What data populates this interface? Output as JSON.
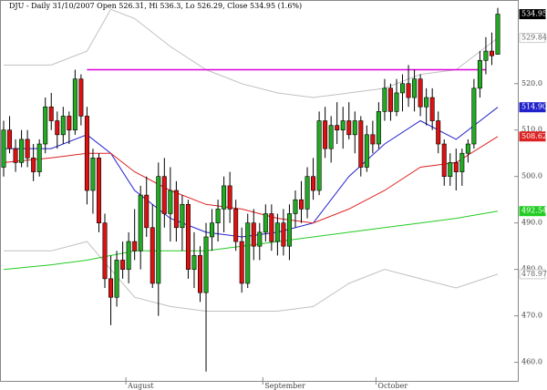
{
  "chart_data": {
    "type": "candlestick",
    "title": "DJU - Daily 31/10/2007 Open 526.31, Hi 536.3, Lo 526.29, Close 534.95 (1.6%)",
    "categories": [
      null,
      null,
      null,
      null,
      null,
      null,
      null,
      null,
      null,
      null,
      null,
      null,
      null,
      null,
      null,
      null,
      null,
      null,
      null,
      null,
      null,
      "August",
      null,
      null,
      null,
      null,
      null,
      null,
      null,
      null,
      null,
      null,
      null,
      null,
      null,
      null,
      null,
      null,
      null,
      null,
      null,
      null,
      null,
      null,
      "September",
      null,
      null,
      null,
      null,
      null,
      null,
      null,
      null,
      null,
      null,
      null,
      null,
      null,
      null,
      null,
      null,
      null,
      null,
      "October",
      null,
      null,
      null,
      null,
      null,
      null,
      null,
      null,
      null,
      null,
      null,
      null,
      null,
      null,
      null,
      null,
      null,
      null,
      null,
      null
    ],
    "open": [
      502,
      510,
      506,
      503,
      508,
      504,
      501,
      507,
      515,
      512,
      509,
      513,
      510,
      521,
      513,
      497,
      504,
      490,
      478,
      474,
      482,
      480,
      486,
      484,
      496,
      489,
      477,
      500,
      492,
      497,
      489,
      494,
      480,
      483,
      475,
      487,
      490,
      493,
      498,
      493,
      486,
      477,
      490,
      485,
      488,
      492,
      486,
      490,
      485,
      492,
      495,
      493,
      500,
      497,
      512,
      506,
      511,
      510,
      512,
      509,
      512,
      502,
      509,
      507,
      514,
      519,
      514,
      518,
      520,
      517,
      521,
      515,
      517,
      512,
      507,
      500,
      503,
      501,
      505,
      507,
      519,
      525,
      527,
      526.31
    ],
    "high": [
      512,
      513,
      508,
      510,
      510,
      507,
      508,
      517,
      518,
      514,
      515,
      514,
      523,
      522,
      515,
      506,
      505,
      492,
      483,
      484,
      486,
      488,
      493,
      498,
      500,
      494,
      503,
      504,
      502,
      499,
      496,
      495,
      488,
      485,
      490,
      493,
      495,
      500,
      501,
      495,
      489,
      492,
      493,
      490,
      494,
      494,
      492,
      493,
      494,
      497,
      499,
      502,
      504,
      514,
      515,
      513,
      516,
      515,
      516,
      514,
      513,
      511,
      512,
      516,
      521,
      520,
      521,
      522,
      524,
      523,
      522,
      519,
      519,
      514,
      508,
      505,
      506,
      506,
      508,
      521,
      527,
      530,
      531,
      536.3
    ],
    "low": [
      500,
      505,
      501,
      502,
      502,
      499,
      500,
      505,
      510,
      506,
      507,
      507,
      509,
      511,
      494,
      492,
      488,
      476,
      468,
      472,
      478,
      477,
      482,
      480,
      487,
      476,
      470,
      489,
      486,
      486,
      484,
      478,
      476,
      473,
      458,
      484,
      486,
      488,
      490,
      484,
      475,
      476,
      482,
      482,
      486,
      484,
      483,
      483,
      482,
      489,
      490,
      491,
      495,
      496,
      504,
      503,
      507,
      506,
      508,
      505,
      500,
      501,
      505,
      506,
      512,
      512,
      513,
      514,
      515,
      514,
      513,
      511,
      510,
      505,
      498,
      498,
      497,
      498,
      503,
      506,
      517,
      522,
      524,
      526.29
    ],
    "close": [
      510,
      506,
      503,
      508,
      504,
      501,
      507,
      515,
      512,
      509,
      513,
      510,
      521,
      513,
      497,
      504,
      490,
      478,
      474,
      482,
      480,
      486,
      484,
      496,
      489,
      477,
      500,
      492,
      497,
      489,
      494,
      480,
      483,
      475,
      487,
      490,
      493,
      498,
      493,
      486,
      477,
      490,
      485,
      488,
      492,
      486,
      490,
      485,
      492,
      495,
      493,
      500,
      497,
      512,
      506,
      511,
      510,
      512,
      509,
      512,
      502,
      509,
      507,
      514,
      519,
      514,
      518,
      520,
      517,
      521,
      515,
      517,
      512,
      507,
      500,
      503,
      501,
      505,
      507,
      519,
      525,
      527,
      526,
      534.95
    ],
    "up_color": "#22aa22",
    "down_color": "#dd1111",
    "close_tag_color": "#000000",
    "lines": [
      {
        "color": "#c0c0c0",
        "tag": true,
        "tag_fill": "#ffffff",
        "tag_text": "#666666",
        "x": [
          0,
          8,
          14,
          18,
          22,
          28,
          34,
          40,
          46,
          52,
          58,
          64,
          70,
          76,
          83
        ],
        "values": [
          524,
          524,
          527,
          536,
          534,
          528,
          523,
          520,
          518,
          517,
          518,
          519,
          522,
          523,
          529.847
        ]
      },
      {
        "color": "#c0c0c0",
        "tag": true,
        "tag_fill": "#ffffff",
        "tag_text": "#666666",
        "x": [
          0,
          8,
          14,
          18,
          22,
          28,
          34,
          40,
          46,
          52,
          58,
          64,
          70,
          76,
          83
        ],
        "values": [
          484,
          484,
          486,
          480,
          474,
          472,
          471,
          471,
          471,
          472,
          477,
          480,
          478,
          476,
          478.97
        ],
        "end_label": "478.970"
      },
      {
        "color": "#2222cc",
        "tag": true,
        "tag_fill": "#2222cc",
        "tag_text": "#ffffff",
        "x": [
          0,
          8,
          14,
          18,
          22,
          28,
          34,
          40,
          46,
          52,
          58,
          64,
          70,
          76,
          83
        ],
        "values": [
          506,
          506,
          509,
          505,
          497,
          491,
          488,
          487,
          488,
          490,
          500,
          507,
          512,
          508,
          514.907
        ]
      },
      {
        "color": "#dd2222",
        "tag": true,
        "tag_fill": "#dd2222",
        "tag_text": "#ffffff",
        "x": [
          0,
          8,
          14,
          18,
          22,
          28,
          34,
          40,
          46,
          52,
          58,
          64,
          70,
          76,
          83
        ],
        "values": [
          503,
          504,
          505,
          505,
          501,
          497,
          494,
          493,
          491,
          490,
          493,
          497,
          502,
          503,
          508.623
        ]
      },
      {
        "color": "#22cc22",
        "tag": true,
        "tag_fill": "#22cc22",
        "tag_text": "#ffffff",
        "x": [
          0,
          8,
          14,
          18,
          22,
          28,
          34,
          40,
          46,
          52,
          58,
          64,
          70,
          76,
          83
        ],
        "values": [
          480,
          481,
          482,
          483,
          484,
          484,
          484,
          485,
          486,
          487,
          488,
          489,
          490,
          491,
          492.542
        ]
      },
      {
        "color": "#dd00dd",
        "tag": false,
        "x": [
          14,
          81
        ],
        "values": [
          523,
          523
        ]
      }
    ],
    "ylim": [
      456,
      538
    ],
    "yticks": [
      {
        "value": 460,
        "label": "460.0"
      },
      {
        "value": 470,
        "label": "470.0"
      },
      {
        "value": 480,
        "label": "480.0"
      },
      {
        "value": 490,
        "label": "490.0"
      },
      {
        "value": 500,
        "label": "500.0"
      },
      {
        "value": 510,
        "label": "510.0"
      },
      {
        "value": 520,
        "label": "520.0"
      }
    ]
  }
}
